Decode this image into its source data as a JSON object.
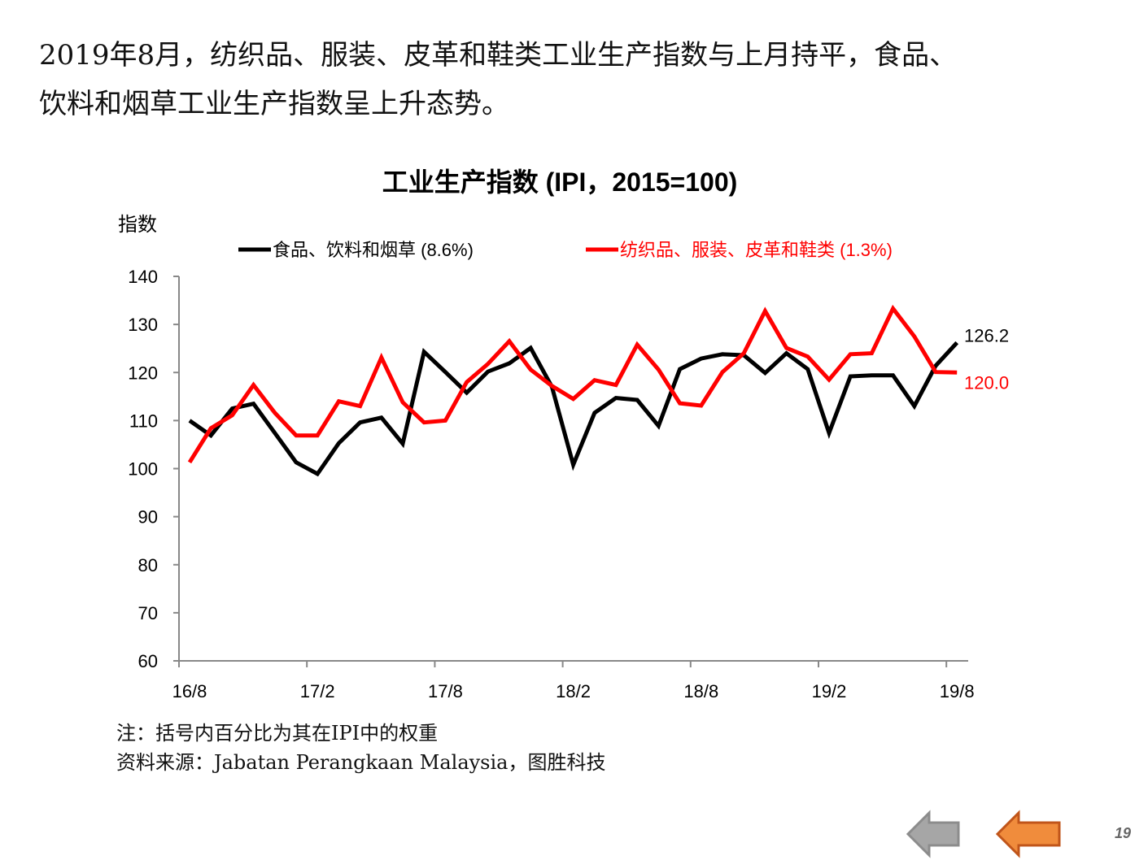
{
  "heading": {
    "line1": "2019年8月，纺织品、服装、皮革和鞋类工业生产指数与上月持平，食品、",
    "line2": "饮料和烟草工业生产指数呈上升态势。"
  },
  "chart_data": {
    "type": "line",
    "title": "工业生产指数 (IPI，2015=100)",
    "ylabel": "指数",
    "xlabel": "",
    "ylim": [
      60,
      140
    ],
    "yticks": [
      60,
      70,
      80,
      90,
      100,
      110,
      120,
      130,
      140
    ],
    "xtick_labels": [
      "16/8",
      "17/2",
      "17/8",
      "18/2",
      "18/8",
      "19/2",
      "19/8"
    ],
    "x_start": "2016-08",
    "x_end": "2019-08",
    "legend_position": "top",
    "series": [
      {
        "name": "食品、饮料和烟草 (8.6%)",
        "color": "#000000",
        "end_label": "126.2",
        "values": [
          110.0,
          106.9,
          112.5,
          113.5,
          107.4,
          101.3,
          98.9,
          105.3,
          109.6,
          110.6,
          105.2,
          124.3,
          120.1,
          115.8,
          120.2,
          121.9,
          125.1,
          117.0,
          100.8,
          111.6,
          114.7,
          114.3,
          108.9,
          120.7,
          122.9,
          123.8,
          123.6,
          119.9,
          124.0,
          120.7,
          107.4,
          119.2,
          119.4,
          119.4,
          113.0,
          121.4,
          126.2
        ]
      },
      {
        "name": "纺织品、服装、皮革和鞋类 (1.3%)",
        "color": "#ff0000",
        "end_label": "120.0",
        "values": [
          101.3,
          108.4,
          111.1,
          117.4,
          111.6,
          106.9,
          106.9,
          114.0,
          113.0,
          123.1,
          113.8,
          109.6,
          110.0,
          118.0,
          121.8,
          126.5,
          120.6,
          117.2,
          114.5,
          118.4,
          117.4,
          125.8,
          120.6,
          113.6,
          113.1,
          120.1,
          124.0,
          132.8,
          125.1,
          123.3,
          118.5,
          123.8,
          124.0,
          133.3,
          127.5,
          120.1,
          120.0
        ]
      }
    ]
  },
  "notes": {
    "note1": "注：括号内百分比为其在IPI中的权重",
    "source": "资料来源：Jabatan Perangkaan Malaysia，图胜科技"
  },
  "page_number": "19",
  "colors": {
    "back_arrow": "#a6a6a6",
    "forward_arrow": "#f08c3c"
  }
}
